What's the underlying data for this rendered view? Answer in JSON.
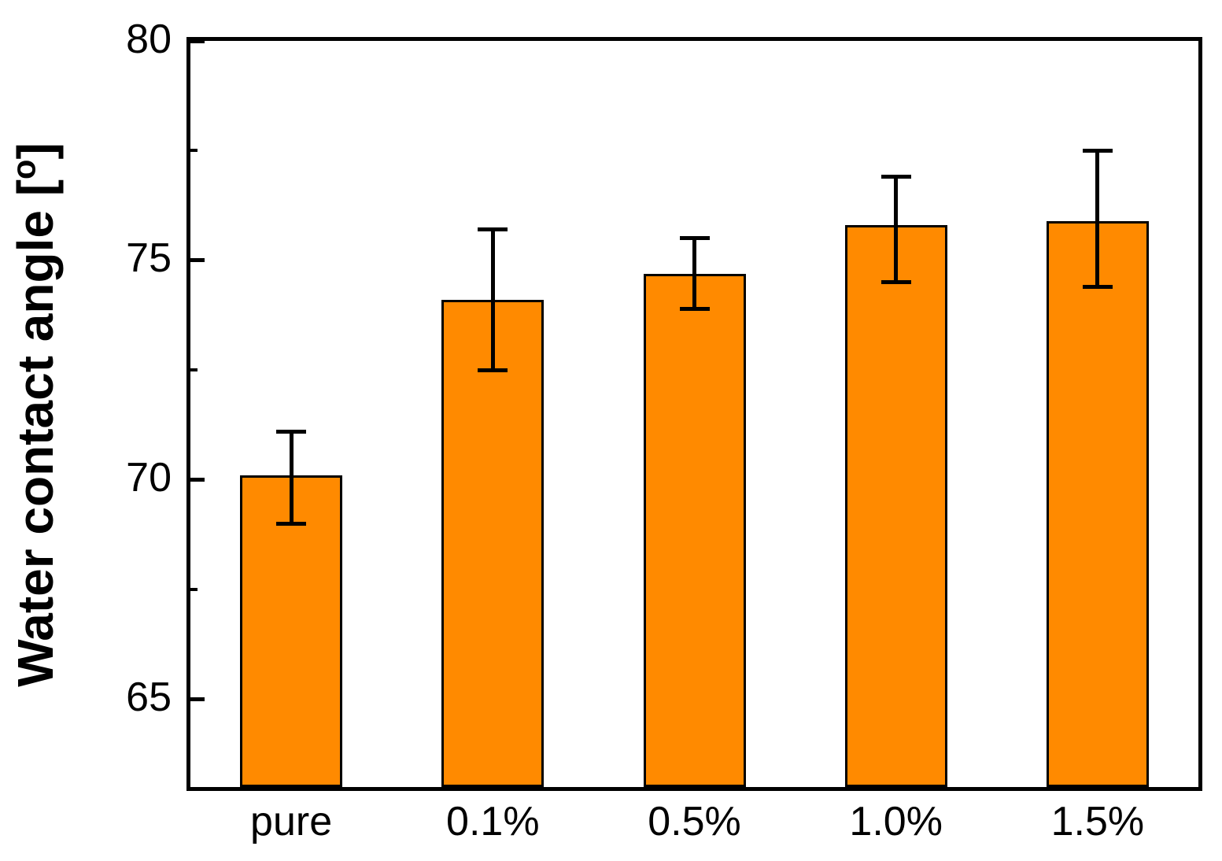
{
  "figure": {
    "background": "#ffffff",
    "text_color": "#000000",
    "ylabel_prefix": "Water contact angle [",
    "ylabel_sup": "o",
    "ylabel_suffix": "]"
  },
  "chart_data": {
    "type": "bar",
    "title": "",
    "xlabel": "",
    "ylabel": "Water contact angle [°]",
    "categories": [
      "pure",
      "0.1%",
      "0.5%",
      "1.0%",
      "1.5%"
    ],
    "values": [
      70.1,
      74.1,
      74.7,
      75.8,
      75.9
    ],
    "error_high": [
      71.1,
      75.7,
      75.5,
      76.9,
      77.5
    ],
    "error_low": [
      69.0,
      72.5,
      73.9,
      74.5,
      74.4
    ],
    "ylim": [
      63,
      80
    ],
    "yticks_major": [
      80,
      75,
      70,
      65
    ],
    "ytick_labels": [
      "80",
      "75",
      "70",
      "65"
    ],
    "yticks_minor": [
      77.5,
      72.5,
      67.5
    ],
    "grid": false,
    "legend": null,
    "frame": "full-box",
    "tick_direction": "in",
    "bar_color": "#FF8A00",
    "bar_edge_color": "#000000",
    "error_color": "#000000"
  }
}
